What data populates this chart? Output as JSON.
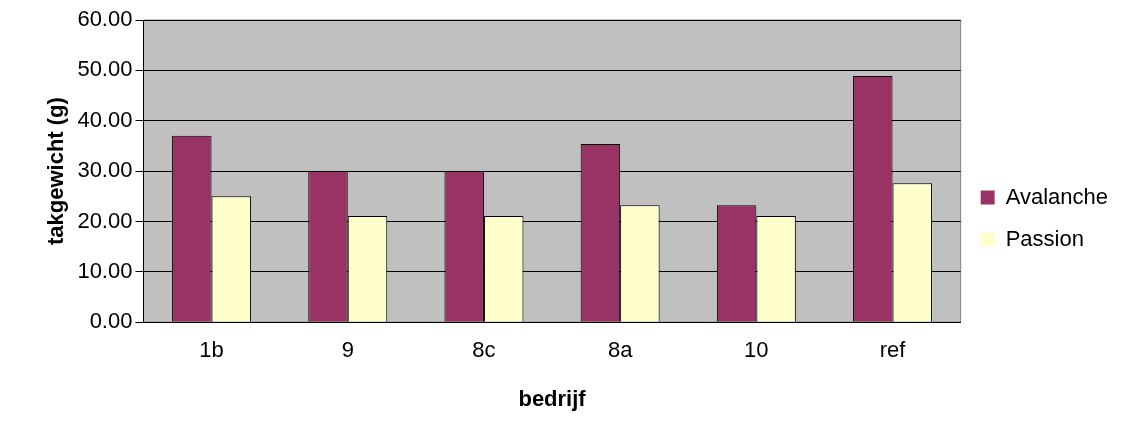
{
  "chart_data": {
    "type": "bar",
    "xlabel": "bedrijf",
    "ylabel": "takgewicht (g)",
    "categories": [
      "1b",
      "9",
      "8c",
      "8a",
      "10",
      "ref"
    ],
    "series": [
      {
        "name": "Avalanche",
        "color": "#993366",
        "values": [
          37.0,
          30.0,
          30.0,
          35.4,
          23.2,
          48.9
        ]
      },
      {
        "name": "Passion",
        "color": "#ffffcc",
        "values": [
          25.0,
          21.1,
          21.1,
          23.2,
          21.1,
          27.6
        ]
      }
    ],
    "ylim": [
      0,
      60
    ],
    "yticks": [
      {
        "value": 0,
        "label": "0.00"
      },
      {
        "value": 10,
        "label": "10.00"
      },
      {
        "value": 20,
        "label": "20.00"
      },
      {
        "value": 30,
        "label": "30.00"
      },
      {
        "value": 40,
        "label": "40.00"
      },
      {
        "value": 50,
        "label": "50.00"
      },
      {
        "value": 60,
        "label": "60.00"
      }
    ],
    "grid": "y",
    "legend": "right"
  }
}
